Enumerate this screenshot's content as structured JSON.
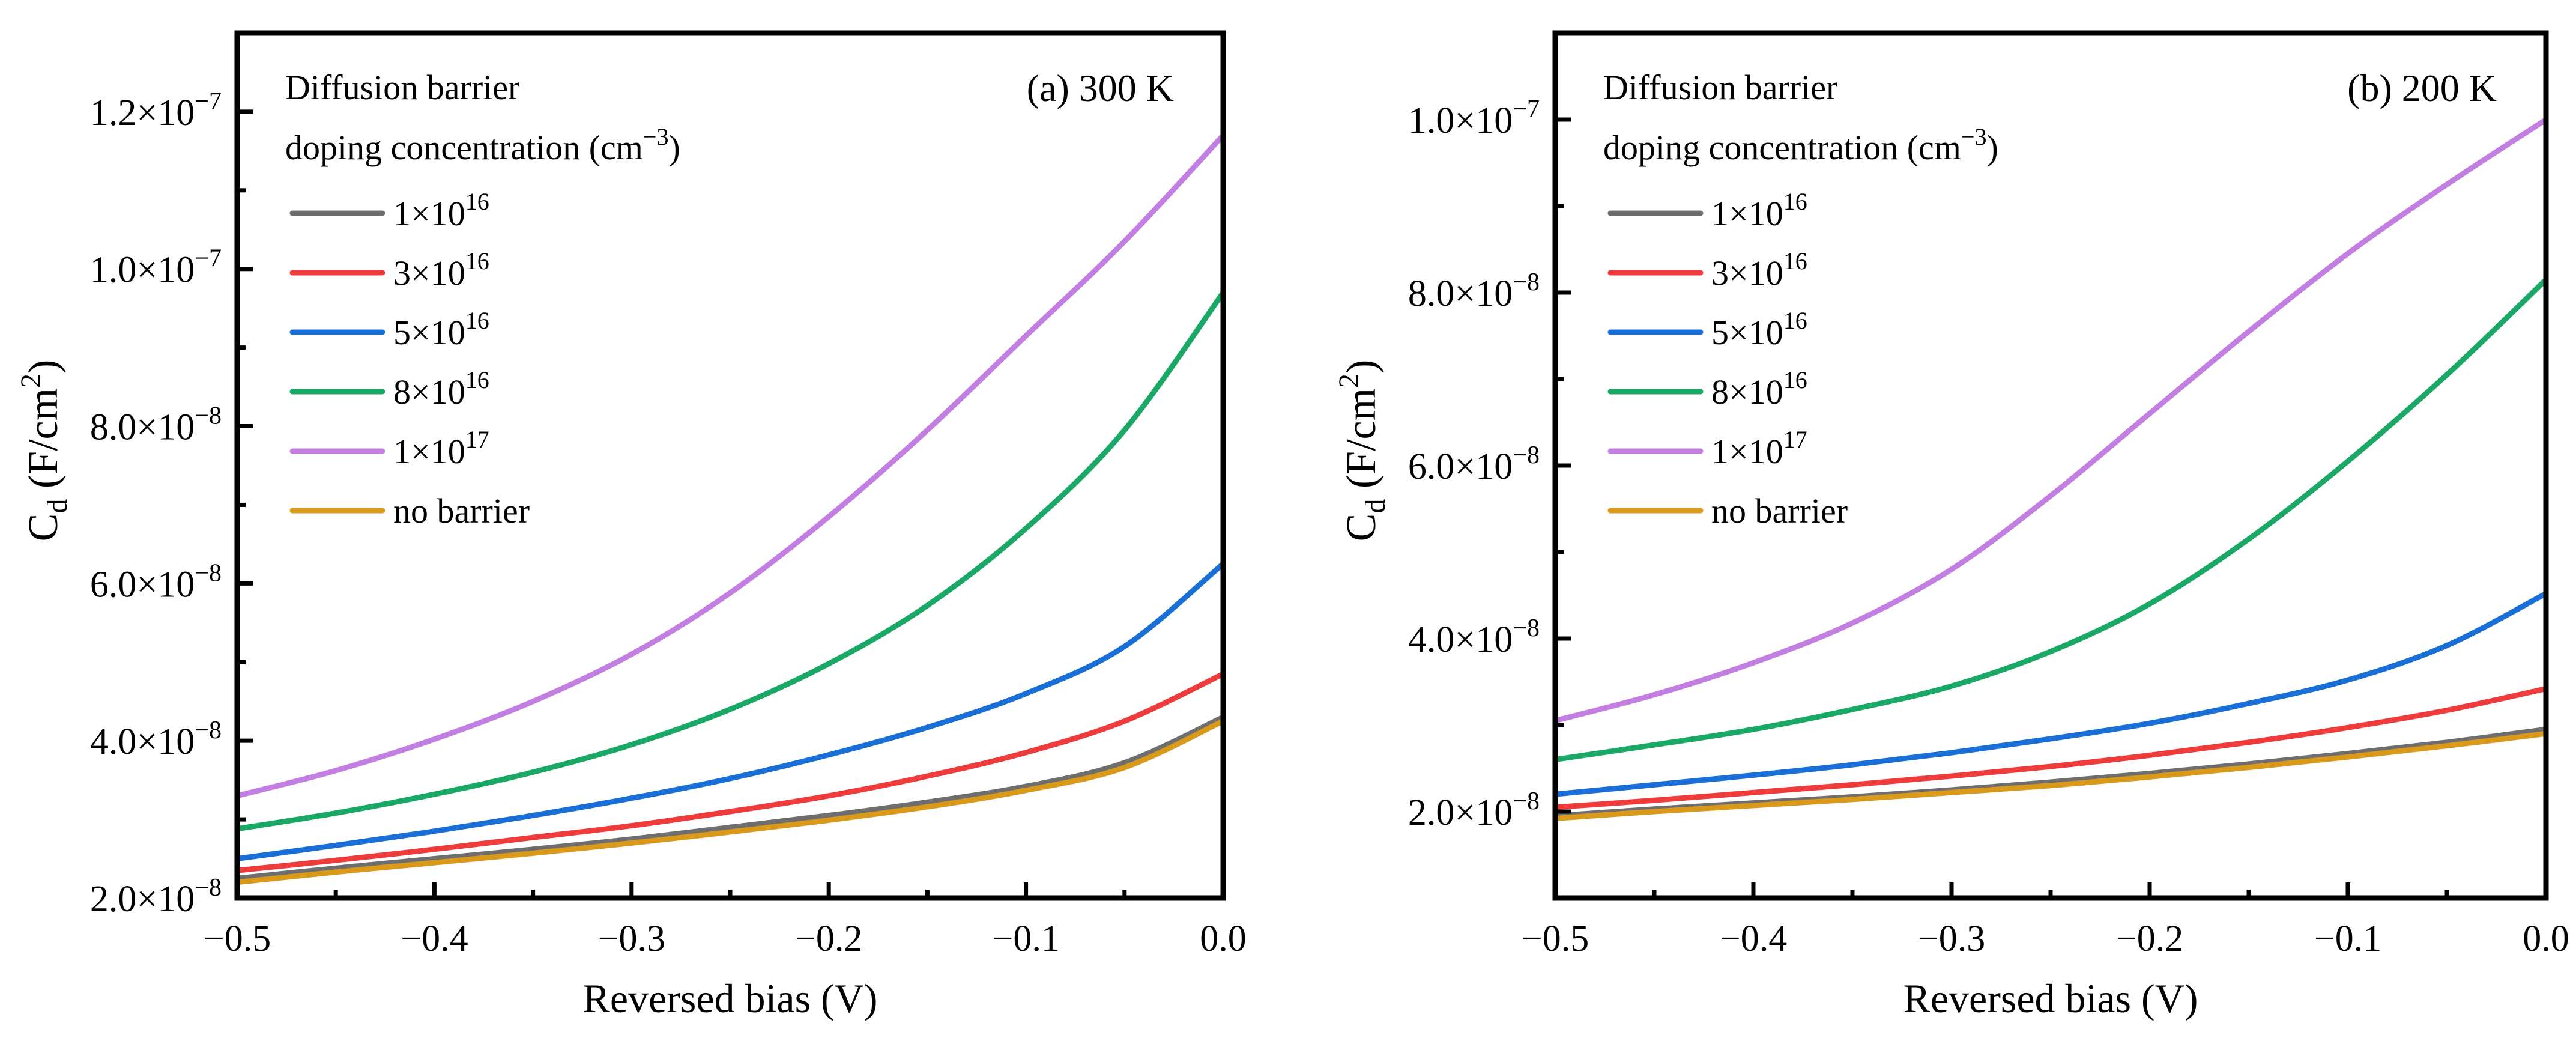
{
  "chart_data": [
    {
      "type": "line",
      "panel": "(a) 300 K",
      "title": "(a) 300 K",
      "xlabel": "Reversed bias (V)",
      "ylabel": "C_d (F/cm^2)",
      "ylabel_parts": {
        "main": "C",
        "sub": "d",
        "unit_open": " (F/cm",
        "sup": "2",
        "unit_close": ")"
      },
      "xlim": [
        -0.5,
        0.0
      ],
      "ylim": [
        2e-08,
        1.3e-07
      ],
      "x_ticks": [
        -0.5,
        -0.4,
        -0.3,
        -0.2,
        -0.1,
        0.0
      ],
      "x_tick_labels": [
        "−0.5",
        "−0.4",
        "−0.3",
        "−0.2",
        "−0.1",
        "0.0"
      ],
      "y_ticks": [
        2e-08,
        4e-08,
        6e-08,
        8e-08,
        1e-07,
        1.2e-07
      ],
      "y_tick_labels": [
        {
          "mant": "2.0×10",
          "exp": "−8"
        },
        {
          "mant": "4.0×10",
          "exp": "−8"
        },
        {
          "mant": "6.0×10",
          "exp": "−8"
        },
        {
          "mant": "8.0×10",
          "exp": "−8"
        },
        {
          "mant": "1.0×10",
          "exp": "−7"
        },
        {
          "mant": "1.2×10",
          "exp": "−7"
        }
      ],
      "grid": false,
      "legend": {
        "placement": "top-left",
        "title_line1": "Diffusion barrier",
        "title_line2": {
          "main": "doping concentration (cm",
          "sup": "−3",
          "close": ")"
        }
      },
      "x": [
        -0.5,
        -0.45,
        -0.4,
        -0.35,
        -0.3,
        -0.25,
        -0.2,
        -0.15,
        -0.1,
        -0.05,
        0.0
      ],
      "series": [
        {
          "name": {
            "mant": "1×10",
            "exp": "16"
          },
          "color": "#6e6e6e",
          "values": [
            2.25e-08,
            2.38e-08,
            2.5e-08,
            2.62e-08,
            2.75e-08,
            2.9e-08,
            3.05e-08,
            3.22e-08,
            3.42e-08,
            3.72e-08,
            4.3e-08
          ]
        },
        {
          "name": {
            "mant": "3×10",
            "exp": "16"
          },
          "color": "#ee3b3b",
          "values": [
            2.35e-08,
            2.48e-08,
            2.62e-08,
            2.77e-08,
            2.92e-08,
            3.1e-08,
            3.3e-08,
            3.55e-08,
            3.85e-08,
            4.25e-08,
            4.85e-08
          ]
        },
        {
          "name": {
            "mant": "5×10",
            "exp": "16"
          },
          "color": "#1a6fd6",
          "values": [
            2.5e-08,
            2.67e-08,
            2.85e-08,
            3.05e-08,
            3.27e-08,
            3.52e-08,
            3.82e-08,
            4.17e-08,
            4.6e-08,
            5.2e-08,
            6.25e-08
          ]
        },
        {
          "name": {
            "mant": "8×10",
            "exp": "16"
          },
          "color": "#1aa866",
          "values": [
            2.88e-08,
            3.08e-08,
            3.32e-08,
            3.6e-08,
            3.95e-08,
            4.4e-08,
            4.98e-08,
            5.72e-08,
            6.7e-08,
            7.95e-08,
            9.7e-08
          ]
        },
        {
          "name": {
            "mant": "1×10",
            "exp": "17"
          },
          "color": "#c27ee0",
          "values": [
            3.3e-08,
            3.62e-08,
            4.02e-08,
            4.5e-08,
            5.1e-08,
            5.88e-08,
            6.85e-08,
            7.95e-08,
            9.15e-08,
            1.035e-07,
            1.17e-07
          ]
        },
        {
          "name": {
            "plain": "no barrier"
          },
          "color": "#d99a1c",
          "values": [
            2.2e-08,
            2.33e-08,
            2.45e-08,
            2.57e-08,
            2.7e-08,
            2.84e-08,
            2.99e-08,
            3.16e-08,
            3.37e-08,
            3.66e-08,
            4.25e-08
          ]
        }
      ]
    },
    {
      "type": "line",
      "panel": "(b) 200 K",
      "title": "(b) 200 K",
      "xlabel": "Reversed bias (V)",
      "ylabel": "C_d (F/cm^2)",
      "ylabel_parts": {
        "main": "C",
        "sub": "d",
        "unit_open": " (F/cm",
        "sup": "2",
        "unit_close": ")"
      },
      "xlim": [
        -0.5,
        0.0
      ],
      "ylim": [
        1e-08,
        1.1e-07
      ],
      "x_ticks": [
        -0.5,
        -0.4,
        -0.3,
        -0.2,
        -0.1,
        0.0
      ],
      "x_tick_labels": [
        "−0.5",
        "−0.4",
        "−0.3",
        "−0.2",
        "−0.1",
        "0.0"
      ],
      "y_ticks": [
        2e-08,
        4e-08,
        6e-08,
        8e-08,
        1e-07
      ],
      "y_tick_labels": [
        {
          "mant": "2.0×10",
          "exp": "−8"
        },
        {
          "mant": "4.0×10",
          "exp": "−8"
        },
        {
          "mant": "6.0×10",
          "exp": "−8"
        },
        {
          "mant": "8.0×10",
          "exp": "−8"
        },
        {
          "mant": "1.0×10",
          "exp": "−7"
        }
      ],
      "grid": false,
      "legend": {
        "placement": "top-left",
        "title_line1": "Diffusion barrier",
        "title_line2": {
          "main": "doping concentration (cm",
          "sup": "−3",
          "close": ")"
        }
      },
      "x": [
        -0.5,
        -0.45,
        -0.4,
        -0.35,
        -0.3,
        -0.25,
        -0.2,
        -0.15,
        -0.1,
        -0.05,
        0.0
      ],
      "series": [
        {
          "name": {
            "mant": "1×10",
            "exp": "16"
          },
          "color": "#6e6e6e",
          "values": [
            1.95e-08,
            2.03e-08,
            2.1e-08,
            2.17e-08,
            2.25e-08,
            2.34e-08,
            2.44e-08,
            2.55e-08,
            2.67e-08,
            2.8e-08,
            2.95e-08
          ]
        },
        {
          "name": {
            "mant": "3×10",
            "exp": "16"
          },
          "color": "#ee3b3b",
          "values": [
            2.05e-08,
            2.13e-08,
            2.22e-08,
            2.31e-08,
            2.41e-08,
            2.52e-08,
            2.65e-08,
            2.8e-08,
            2.97e-08,
            3.17e-08,
            3.42e-08
          ]
        },
        {
          "name": {
            "mant": "5×10",
            "exp": "16"
          },
          "color": "#1a6fd6",
          "values": [
            2.2e-08,
            2.31e-08,
            2.42e-08,
            2.54e-08,
            2.68e-08,
            2.84e-08,
            3.02e-08,
            3.25e-08,
            3.52e-08,
            3.92e-08,
            4.52e-08
          ]
        },
        {
          "name": {
            "mant": "8×10",
            "exp": "16"
          },
          "color": "#1aa866",
          "values": [
            2.6e-08,
            2.77e-08,
            2.95e-08,
            3.18e-08,
            3.45e-08,
            3.85e-08,
            4.4e-08,
            5.15e-08,
            6.05e-08,
            7.05e-08,
            8.15e-08
          ]
        },
        {
          "name": {
            "mant": "1×10",
            "exp": "17"
          },
          "color": "#c27ee0",
          "values": [
            3.05e-08,
            3.35e-08,
            3.72e-08,
            4.18e-08,
            4.8e-08,
            5.65e-08,
            6.6e-08,
            7.55e-08,
            8.45e-08,
            9.25e-08,
            1e-07
          ]
        },
        {
          "name": {
            "plain": "no barrier"
          },
          "color": "#d99a1c",
          "values": [
            1.92e-08,
            2e-08,
            2.07e-08,
            2.14e-08,
            2.22e-08,
            2.3e-08,
            2.4e-08,
            2.51e-08,
            2.63e-08,
            2.76e-08,
            2.9e-08
          ]
        }
      ]
    }
  ]
}
